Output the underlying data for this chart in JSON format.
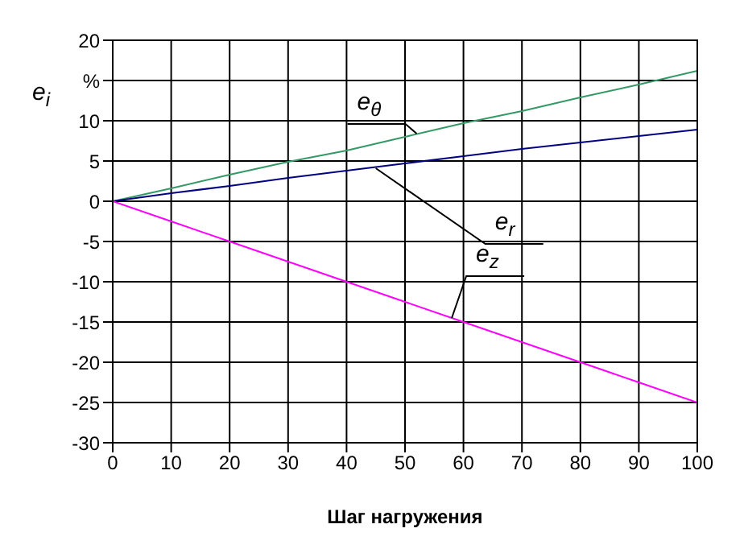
{
  "chart_data": {
    "type": "line",
    "xlabel": "Шаг нагружения",
    "ylabel": "e$_{i}$",
    "x": [
      0,
      10,
      20,
      30,
      40,
      50,
      60,
      70,
      80,
      90,
      100
    ],
    "series": [
      {
        "color": "#339966",
        "values": [
          0,
          1.6,
          3.3,
          4.9,
          6.3,
          8.0,
          9.7,
          11.2,
          12.9,
          14.5,
          16.2
        ]
      },
      {
        "color": "#000080",
        "values": [
          0,
          1.0,
          1.9,
          2.9,
          3.8,
          4.7,
          5.6,
          6.5,
          7.3,
          8.1,
          8.9
        ]
      },
      {
        "color": "#ff00ff",
        "values": [
          0,
          -2.5,
          -5,
          -7.5,
          -10,
          -12.5,
          -15,
          -17.5,
          -20,
          -22.5,
          -25
        ]
      }
    ],
    "xlim": [
      0,
      100
    ],
    "xticks": [
      0,
      10,
      20,
      30,
      40,
      50,
      60,
      70,
      80,
      90,
      100
    ],
    "ylim": [
      -30,
      20
    ],
    "yticks": [
      -30,
      -25,
      -20,
      -15,
      -10,
      -5,
      0,
      5,
      10,
      {
        "value": 15,
        "label": "%"
      },
      20
    ],
    "grid": true,
    "marker": "none",
    "line_style": "solid",
    "annotations": [
      {
        "text": "e$_{θ}$",
        "x": 52,
        "y": 8.4
      },
      {
        "text": "e$_{r}$",
        "x": 45,
        "y": 4.1
      },
      {
        "text": "e$_{z}$",
        "x": 58,
        "y": -14.5
      }
    ]
  }
}
